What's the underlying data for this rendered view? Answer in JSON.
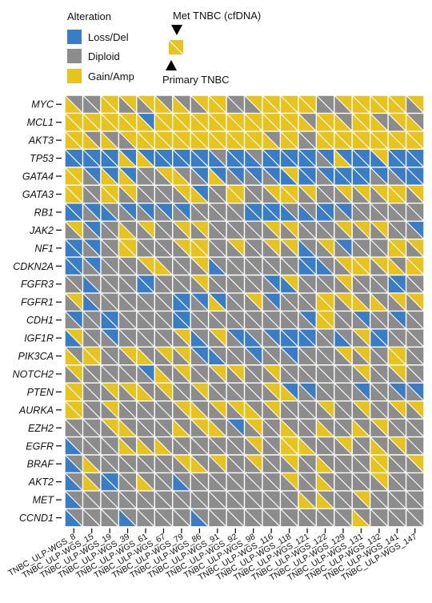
{
  "legend": {
    "title": "Alteration",
    "items": [
      {
        "code": "L",
        "label": "Loss/Del",
        "color": "#3a7dc4"
      },
      {
        "code": "D",
        "label": "Diploid",
        "color": "#8c8c8c"
      },
      {
        "code": "G",
        "label": "Gain/Amp",
        "color": "#e7c31f"
      }
    ],
    "met_label": "Met TNBC (cfDNA)",
    "primary_label": "Primary TNBC"
  },
  "chart_data": {
    "type": "heatmap",
    "cell_layout": "each cell split by diagonal: upper-right triangle = Met TNBC (cfDNA), lower-left triangle = Primary TNBC",
    "genes": [
      "MYC",
      "MCL1",
      "AKT3",
      "TP53",
      "GATA4",
      "GATA3",
      "RB1",
      "JAK2",
      "NF1",
      "CDKN2A",
      "FGFR3",
      "FGFR1",
      "CDH1",
      "IGF1R",
      "PIK3CA",
      "NOTCH2",
      "PTEN",
      "AURKA",
      "EZH2",
      "EGFR",
      "BRAF",
      "AKT2",
      "MET",
      "CCND1"
    ],
    "samples": [
      "TNBC_ULP-WGS_8",
      "TNBC_ULP-WGS_15",
      "TNBC_ULP-WGS_19",
      "TNBC_ULP-WGS_39",
      "TNBC_ULP-WGS_61",
      "TNBC_ULP-WGS_67",
      "TNBC_ULP-WGS_79",
      "TNBC_ULP-WGS_86",
      "TNBC_ULP-WGS_91",
      "TNBC_ULP-WGS_92",
      "TNBC_ULP-WGS_98",
      "TNBC_ULP-WGS_116",
      "TNBC_ULP-WGS_118",
      "TNBC_ULP-WGS_121",
      "TNBC_ULP-WGS_122",
      "TNBC_ULP-WGS_129",
      "TNBC_ULP-WGS_131",
      "TNBC_ULP-WGS_132",
      "TNBC_ULP-WGS_141",
      "TNBC_ULP-WGS_147"
    ],
    "met": [
      "DDGGGDDGGDGGGGDGGGGG",
      "GGGGLGGGGGGGGDGDGDGD",
      "GDDGGGGGGGGDGDGGGGGG",
      "LLLLLLLLDLDLLLLLLGLL",
      "GLLLDGDLLLLLGLLLLLLL",
      "GDGGDDGLDGDGGGDGGGGG",
      "LLDLLLLDDDLLDDLLDDDD",
      "GLDDGDGGDDDGGDDGGGDL",
      "LLDGDDGGDGDGGDGLDDGG",
      "LLDDGDDGDDDDDLDGGGDG",
      "DDDDLDDGDDDLGDDGDDLD",
      "GDDDDDLLLDGLDDGGDDGG",
      "LDLDDDLDDDDDDLGDLDLD",
      "GDLDDDGDGLDLLLDDGLDD",
      "DGDGDGGLDDLDLDDGGDGD",
      "GDDDLDGDGGDGDDDDGDGD",
      "GDGGDGDGDDDGLLDDLDLL",
      "GDGDDDGDGGDGDDGDGDGG",
      "DDGDDDDGDLGDDDDDDGDD",
      "DDDDDDDDDDGDGDDGDDGD",
      "DDDDDDGDGDGDGDDDDGDG",
      "DDLDDDDDDDDDGDDDDGDD",
      "DDDDDDDDDDDDDDDDGDDD",
      "DDDDDDDDDDDDDDDDDDDD"
    ],
    "primary": [
      "GDGDDGGDGDDGGGDDGGGD",
      "GGGGGGGGGGGGGGGGGGDG",
      "GGGDGGGGGGGGGDGGGGGG",
      "LLLGGLLLLLLLLLDGLLLL",
      "GDGGDDGDGDDDLLDLLDDL",
      "GDGDDDDGDGDDGDDDDDGD",
      "LDLDDDDDDDLLLLLDDDDD",
      "DDDGDDDDDDDDDDDDDDDD",
      "LDDGDDDGDDDDDLDDDDGD",
      "LDDDDGDDLDDDDLLDGDGG",
      "DLDDLDDDDDDDLDDDDDLD",
      "DLDDDDLDGDDDDDGDGGDD",
      "DDLDDDLDDDDDDDGDDDDD",
      "LDDDDDDLDDLDLLDLDLDD",
      "GGDDGDDDLDDDDDDDDDGD",
      "DDDDDGDDDDDDDDDDDDDD",
      "GDDDGDDDDDDDGDDDDDDD",
      "GDDDDDDGDDGDDDDDDDDD",
      "DDDGDDGDGDDDGDGDGDDD",
      "LDDGGGDDDDDDGGDDDGDD",
      "LGDDDDDGDDDDDDGDDGDD",
      "LGLDGDLDDDDDDDGDDDDD",
      "LDDDDDDDDDDDDGGDDDDD",
      "LDDLDDDLDDDDDDDDGDDD"
    ]
  }
}
